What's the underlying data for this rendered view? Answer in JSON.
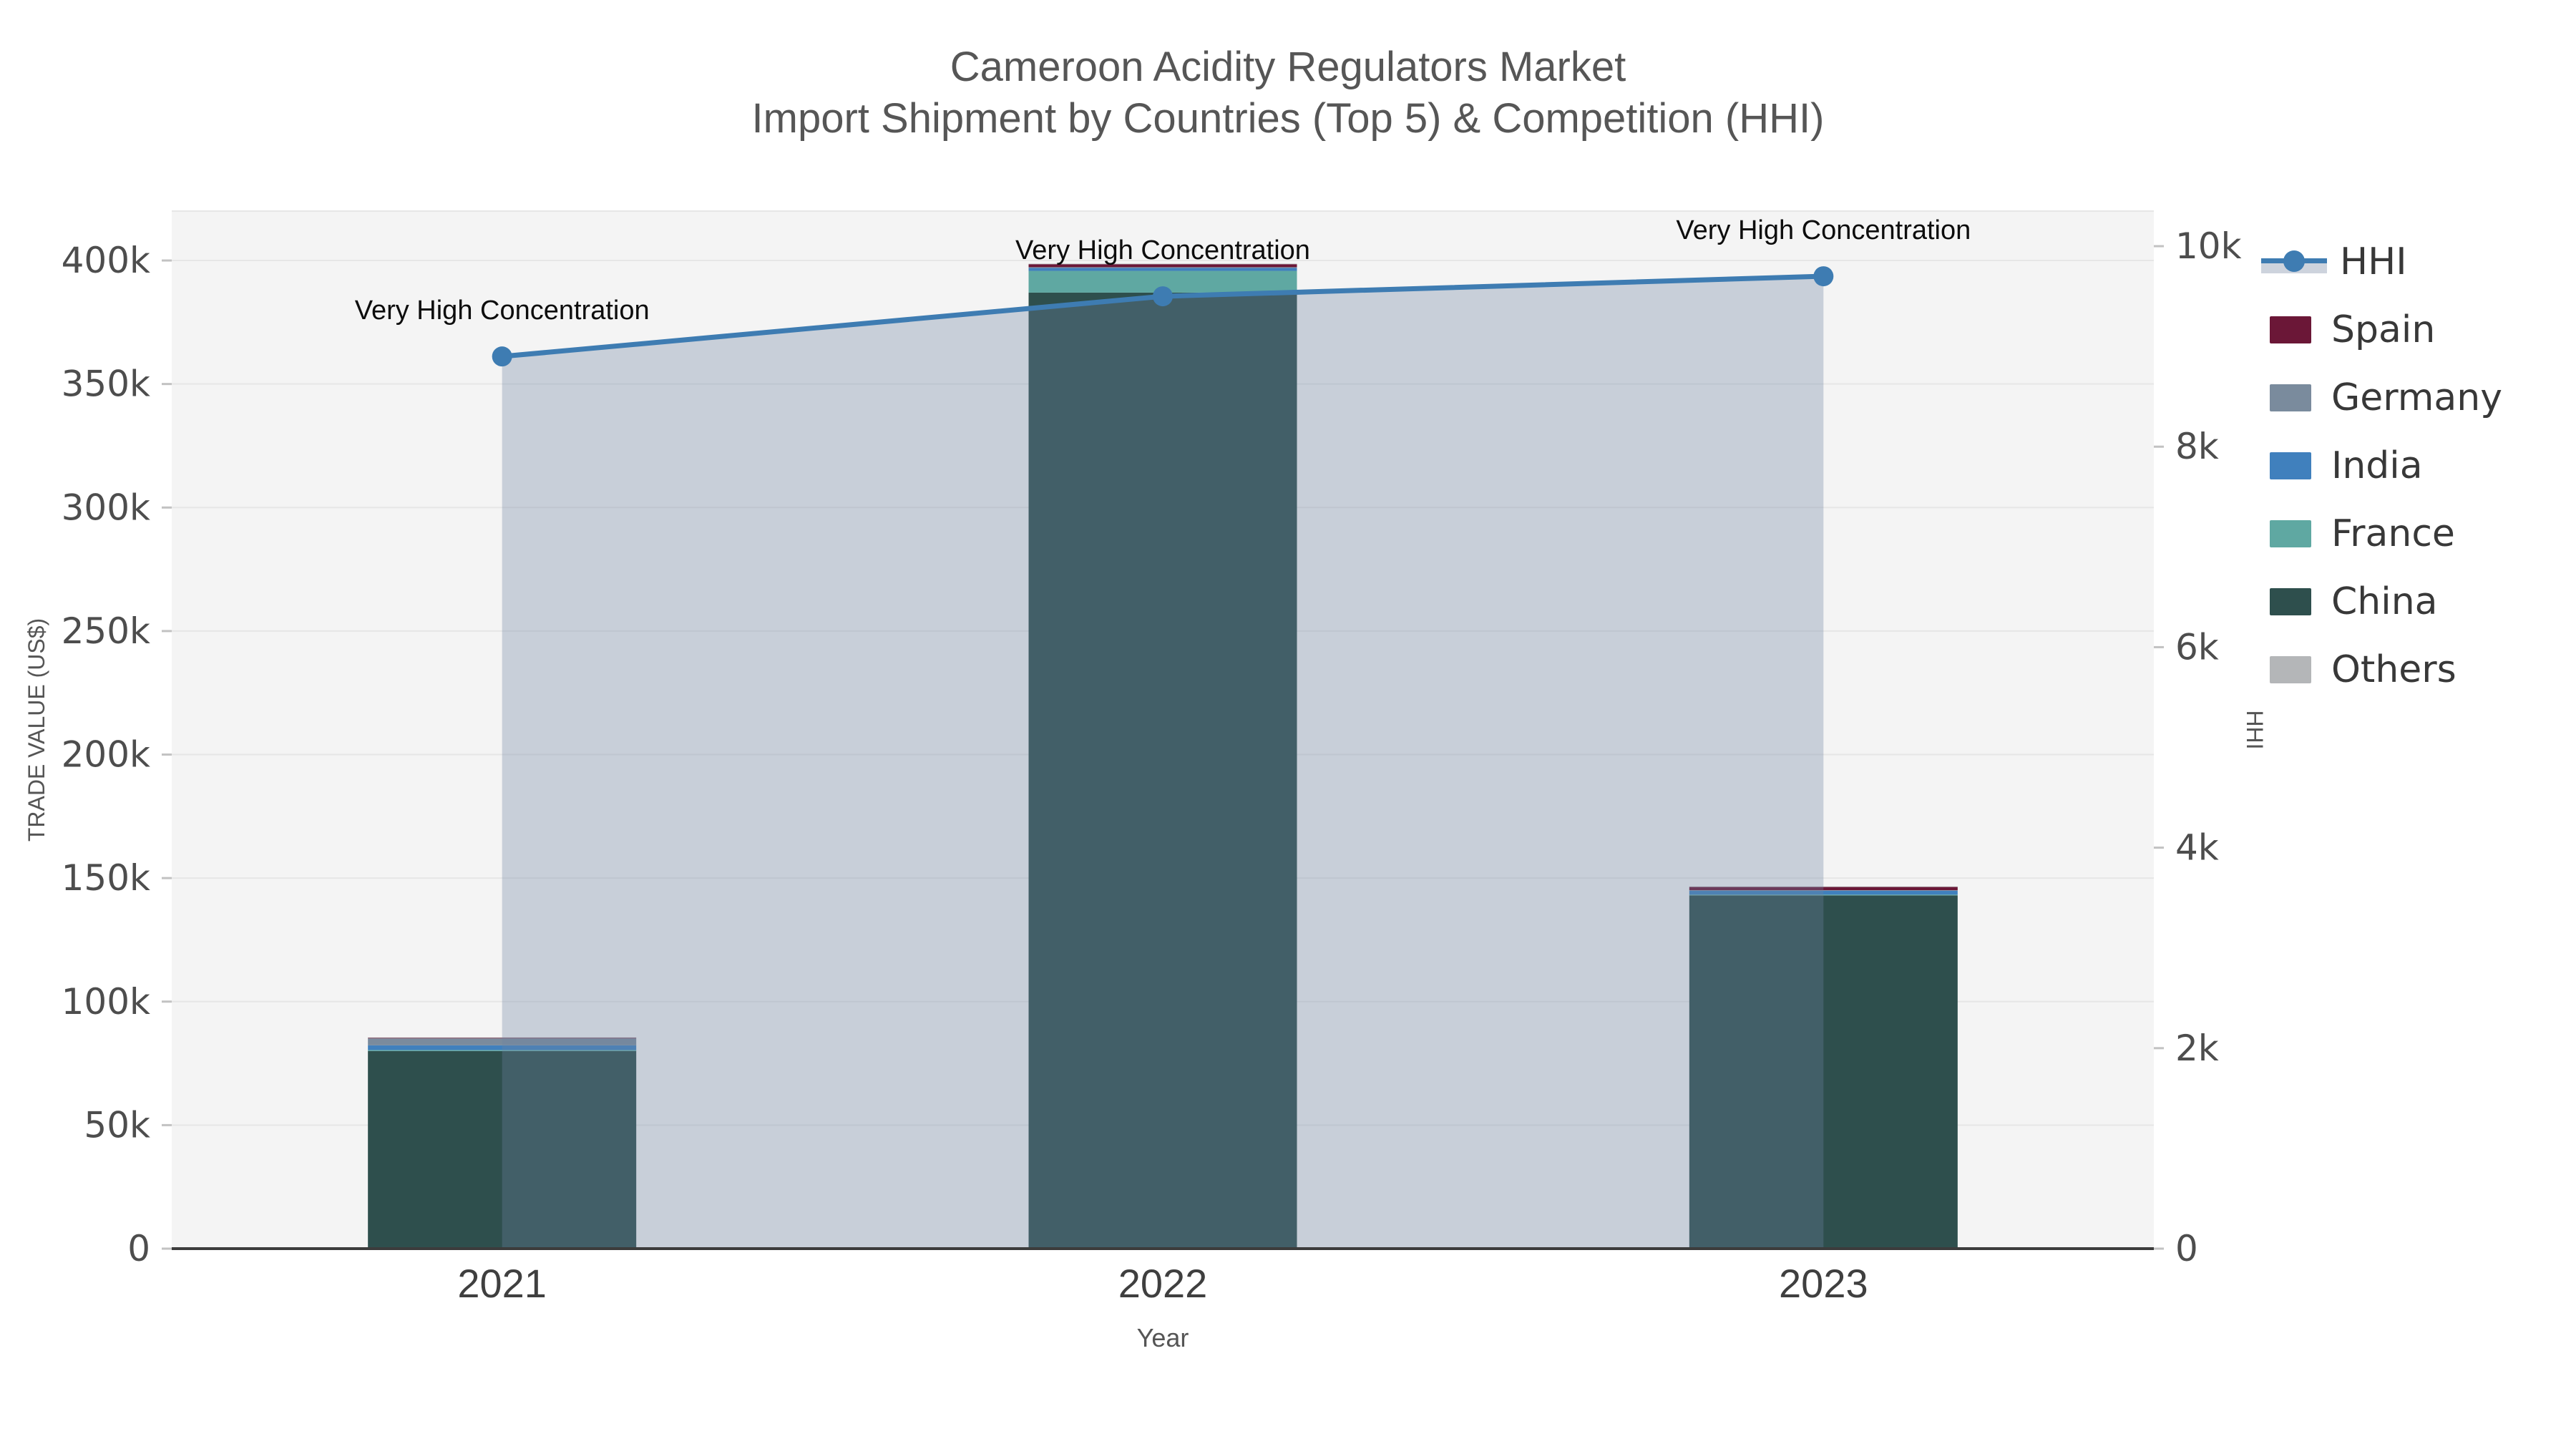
{
  "title": {
    "line1": "Cameroon Acidity Regulators Market",
    "line2": "Import Shipment by Countries (Top 5) & Competition (HHI)"
  },
  "axes": {
    "x": {
      "label": "Year",
      "categories": [
        "2021",
        "2022",
        "2023"
      ]
    },
    "y_left": {
      "label": "TRADE VALUE (US$)",
      "tick_labels": [
        "0",
        "50k",
        "100k",
        "150k",
        "200k",
        "250k",
        "300k",
        "350k",
        "400k"
      ],
      "tick_values": [
        0,
        50000,
        100000,
        150000,
        200000,
        250000,
        300000,
        350000,
        400000
      ]
    },
    "y_right": {
      "label": "HHI",
      "tick_labels": [
        "0",
        "2k",
        "4k",
        "6k",
        "8k",
        "10k"
      ],
      "tick_values": [
        0,
        2000,
        4000,
        6000,
        8000,
        10000
      ]
    }
  },
  "legend": {
    "items": [
      {
        "label": "HHI",
        "kind": "line",
        "color": "#3e7cb2",
        "band_color": "#cdd3dd"
      },
      {
        "label": "Spain",
        "kind": "bar",
        "color": "#6b1737"
      },
      {
        "label": "Germany",
        "kind": "bar",
        "color": "#7a8b9d"
      },
      {
        "label": "India",
        "kind": "bar",
        "color": "#4080bd"
      },
      {
        "label": "France",
        "kind": "bar",
        "color": "#5fa8a2"
      },
      {
        "label": "China",
        "kind": "bar",
        "color": "#2e4f4d"
      },
      {
        "label": "Others",
        "kind": "bar",
        "color": "#b4b6b8"
      }
    ]
  },
  "chart_data": {
    "type": "bar",
    "subtype": "stacked-bar-with-line",
    "title": "Cameroon Acidity Regulators Market — Import Shipment by Countries (Top 5) & Competition (HHI)",
    "xlabel": "Year",
    "ylabel_left": "TRADE VALUE (US$)",
    "ylabel_right": "HHI",
    "categories": [
      "2021",
      "2022",
      "2023"
    ],
    "ylim_left": [
      0,
      420000
    ],
    "ylim_right": [
      0,
      10350
    ],
    "grid": true,
    "legend_position": "right",
    "series": [
      {
        "name": "China",
        "type": "bar",
        "stack": "countries",
        "axis": "left",
        "color": "#2e4f4d",
        "values": [
          80000,
          387000,
          143000
        ]
      },
      {
        "name": "France",
        "type": "bar",
        "stack": "countries",
        "axis": "left",
        "color": "#5fa8a2",
        "values": [
          400,
          8800,
          300
        ]
      },
      {
        "name": "India",
        "type": "bar",
        "stack": "countries",
        "axis": "left",
        "color": "#4080bd",
        "values": [
          1900,
          1200,
          1600
        ]
      },
      {
        "name": "Germany",
        "type": "bar",
        "stack": "countries",
        "axis": "left",
        "color": "#7a8b9d",
        "values": [
          2800,
          300,
          200
        ]
      },
      {
        "name": "Spain",
        "type": "bar",
        "stack": "countries",
        "axis": "left",
        "color": "#6b1737",
        "values": [
          200,
          1200,
          1300
        ]
      },
      {
        "name": "Others",
        "type": "bar",
        "stack": "countries",
        "axis": "left",
        "color": "#b4b6b8",
        "values": [
          200,
          200,
          200
        ]
      },
      {
        "name": "HHI",
        "type": "line-area",
        "axis": "right",
        "color": "#3e7cb2",
        "area_fill": "rgba(110,132,163,0.32)",
        "values": [
          8900,
          9500,
          9700
        ]
      }
    ],
    "annotations": [
      {
        "text": "Very High Concentration",
        "category": "2021",
        "value_right": 8900
      },
      {
        "text": "Very High Concentration",
        "category": "2022",
        "value_right": 9500
      },
      {
        "text": "Very High Concentration",
        "category": "2023",
        "value_right": 9700
      }
    ],
    "colors": {
      "plot_background": "#f4f4f4",
      "figure_background": "#ffffff",
      "gridline": "#e6e6e6",
      "axis_line": "#3c3c3c",
      "tick_text": "#4d4d4d",
      "axis_name_text": "#555555",
      "year_text": "#3f3f3f",
      "annotation_text": "#0d0d0d"
    }
  }
}
